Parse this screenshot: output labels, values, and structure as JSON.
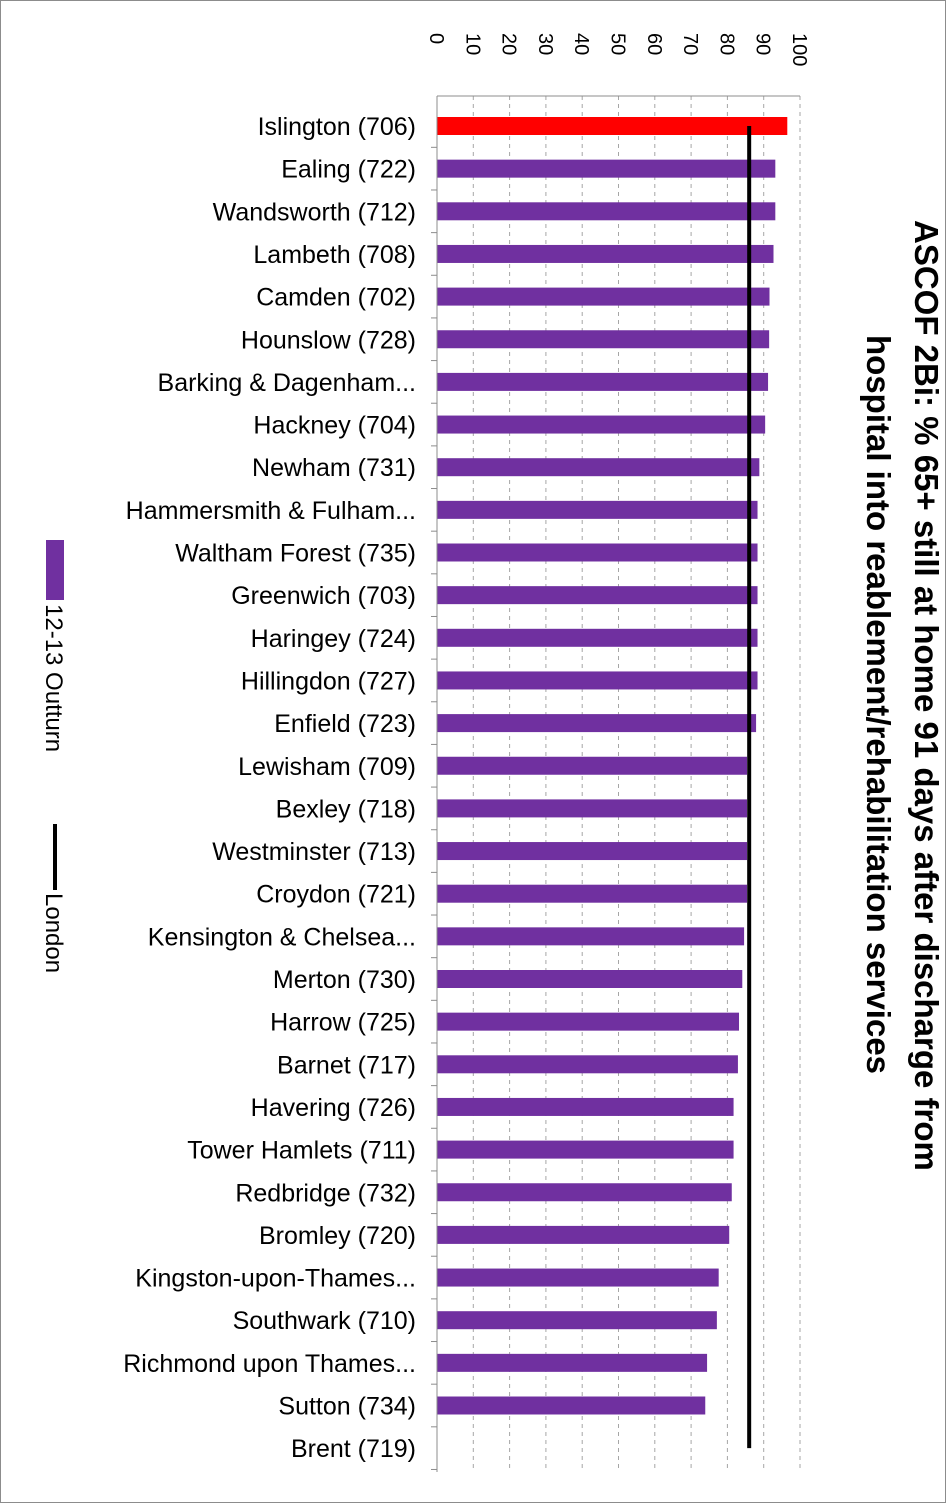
{
  "chart_data": {
    "type": "bar",
    "orientation": "horizontal",
    "title_lines": [
      "ASCOF 2Bi: % 65+ still at home 91 days after discharge from",
      "hospital into reablement/rehabilitation services"
    ],
    "categories": [
      "Islington (706)",
      "Ealing (722)",
      "Wandsworth (712)",
      "Lambeth (708)",
      "Camden (702)",
      "Hounslow (728)",
      "Barking & Dagenham...",
      "Hackney (704)",
      "Newham (731)",
      "Hammersmith & Fulham...",
      "Waltham Forest (735)",
      "Greenwich (703)",
      "Haringey (724)",
      "Hillingdon (727)",
      "Enfield (723)",
      "Lewisham (709)",
      "Bexley (718)",
      "Westminster (713)",
      "Croydon (721)",
      "Kensington & Chelsea...",
      "Merton (730)",
      "Harrow (725)",
      "Barnet (717)",
      "Havering (726)",
      "Tower Hamlets (711)",
      "Redbridge (732)",
      "Bromley (720)",
      "Kingston-upon-Thames...",
      "Southwark (710)",
      "Richmond upon Thames...",
      "Sutton (734)",
      "Brent (719)"
    ],
    "series": [
      {
        "name": "12-13 Outturn",
        "color": "#7030a0",
        "highlight_color": "#ff0000",
        "highlight_index": 0,
        "values": [
          96.5,
          93.2,
          93.2,
          92.7,
          91.6,
          91.5,
          91.2,
          90.4,
          88.8,
          88.3,
          88.3,
          88.3,
          88.3,
          88.3,
          87.9,
          85.4,
          85.4,
          85.4,
          85.4,
          84.6,
          84.1,
          83.2,
          82.9,
          81.7,
          81.7,
          81.2,
          80.5,
          77.6,
          77.1,
          74.4,
          73.9,
          null
        ]
      },
      {
        "name": "London",
        "type": "line",
        "color": "#000000",
        "value": 86.0
      }
    ],
    "xlim": [
      0,
      100
    ],
    "ticks": [
      0,
      10,
      20,
      30,
      40,
      50,
      60,
      70,
      80,
      90,
      100
    ],
    "grid": true,
    "legend_position": "bottom"
  }
}
